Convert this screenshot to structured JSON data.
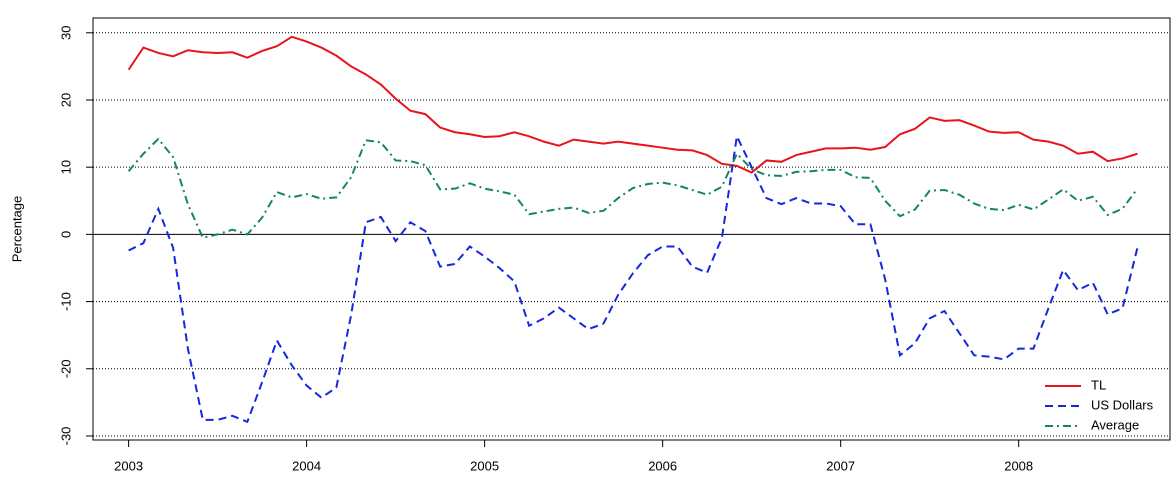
{
  "chart_data": {
    "type": "line",
    "ylabel": "Percentage",
    "x": [
      2003,
      2003.083,
      2003.167,
      2003.25,
      2003.333,
      2003.417,
      2003.5,
      2003.583,
      2003.667,
      2003.75,
      2003.833,
      2003.917,
      2004,
      2004.083,
      2004.167,
      2004.25,
      2004.333,
      2004.417,
      2004.5,
      2004.583,
      2004.667,
      2004.75,
      2004.833,
      2004.917,
      2005,
      2005.083,
      2005.167,
      2005.25,
      2005.333,
      2005.417,
      2005.5,
      2005.583,
      2005.667,
      2005.75,
      2005.833,
      2005.917,
      2006,
      2006.083,
      2006.167,
      2006.25,
      2006.333,
      2006.417,
      2006.5,
      2006.583,
      2006.667,
      2006.75,
      2006.833,
      2006.917,
      2007,
      2007.083,
      2007.167,
      2007.25,
      2007.333,
      2007.417,
      2007.5,
      2007.583,
      2007.667,
      2007.75,
      2007.833,
      2007.917,
      2008,
      2008.083,
      2008.167,
      2008.25,
      2008.333,
      2008.417,
      2008.5,
      2008.583,
      2008.667
    ],
    "series": [
      {
        "name": "TL",
        "color": "#e8141c",
        "style": "solid",
        "values": [
          24.5,
          27.8,
          27,
          26.5,
          27.4,
          27.1,
          27,
          27.1,
          26.3,
          27.3,
          28,
          29.4,
          28.7,
          27.8,
          26.6,
          25,
          23.8,
          22.3,
          20.2,
          18.4,
          17.9,
          15.9,
          15.2,
          14.9,
          14.5,
          14.6,
          15.2,
          14.6,
          13.8,
          13.2,
          14.1,
          13.8,
          13.5,
          13.8,
          13.5,
          13.2,
          12.9,
          12.6,
          12.5,
          11.8,
          10.5,
          10.2,
          9.2,
          11,
          10.8,
          11.8,
          12.3,
          12.8,
          12.8,
          12.9,
          12.6,
          13,
          14.9,
          15.7,
          17.4,
          16.9,
          17,
          16.2,
          15.3,
          15.1,
          15.2,
          14.1,
          13.8,
          13.2,
          12,
          12.3,
          10.9,
          11.3,
          12
        ]
      },
      {
        "name": "US Dollars",
        "color": "#1428e0",
        "style": "dashed",
        "values": [
          -2.4,
          -1.3,
          3.8,
          -2,
          -17,
          -27.6,
          -27.6,
          -27,
          -27.9,
          -22,
          -15.8,
          -19.5,
          -22.5,
          -24.3,
          -22.8,
          -12,
          1.8,
          2.6,
          -1,
          1.8,
          0.5,
          -4.8,
          -4.4,
          -1.8,
          -3.3,
          -5,
          -7,
          -13.6,
          -12.5,
          -10.9,
          -12.5,
          -14.1,
          -13.3,
          -9,
          -5.8,
          -3.1,
          -1.8,
          -1.8,
          -4.8,
          -5.7,
          -0.5,
          14.6,
          10,
          5.4,
          4.5,
          5.4,
          4.6,
          4.6,
          4.2,
          1.5,
          1.5,
          -6.7,
          -18,
          -16.2,
          -12.5,
          -11.4,
          -14.7,
          -18,
          -18.2,
          -18.6,
          -17,
          -17,
          -11,
          -5.3,
          -8.3,
          -7.2,
          -11.9,
          -11,
          -2
        ]
      },
      {
        "name": "Average",
        "color": "#14885a",
        "style": "dashdot",
        "values": [
          9.4,
          12,
          14.2,
          11.5,
          4.5,
          -0.5,
          0,
          0.7,
          0,
          2.5,
          6.3,
          5.5,
          6,
          5.3,
          5.5,
          8.5,
          14,
          13.7,
          11,
          10.9,
          10.3,
          6.7,
          6.8,
          7.6,
          6.8,
          6.4,
          5.9,
          3,
          3.4,
          3.8,
          4,
          3.2,
          3.5,
          5.4,
          6.9,
          7.5,
          7.7,
          7.3,
          6.6,
          5.9,
          7.1,
          12,
          9.7,
          8.8,
          8.7,
          9.3,
          9.4,
          9.6,
          9.6,
          8.5,
          8.4,
          5,
          2.7,
          3.7,
          6.5,
          6.6,
          5.9,
          4.6,
          3.8,
          3.6,
          4.4,
          3.7,
          5.2,
          6.7,
          5,
          5.6,
          2.9,
          3.8,
          6.8
        ]
      }
    ],
    "xlim": [
      2002.8,
      2008.85
    ],
    "xticks": [
      2003,
      2004,
      2005,
      2006,
      2007,
      2008
    ],
    "ylim": [
      -30.6,
      32.2
    ],
    "yticks": [
      -30,
      -20,
      -10,
      0,
      10,
      20,
      30
    ],
    "grid": true,
    "legend": "bottom-right"
  }
}
